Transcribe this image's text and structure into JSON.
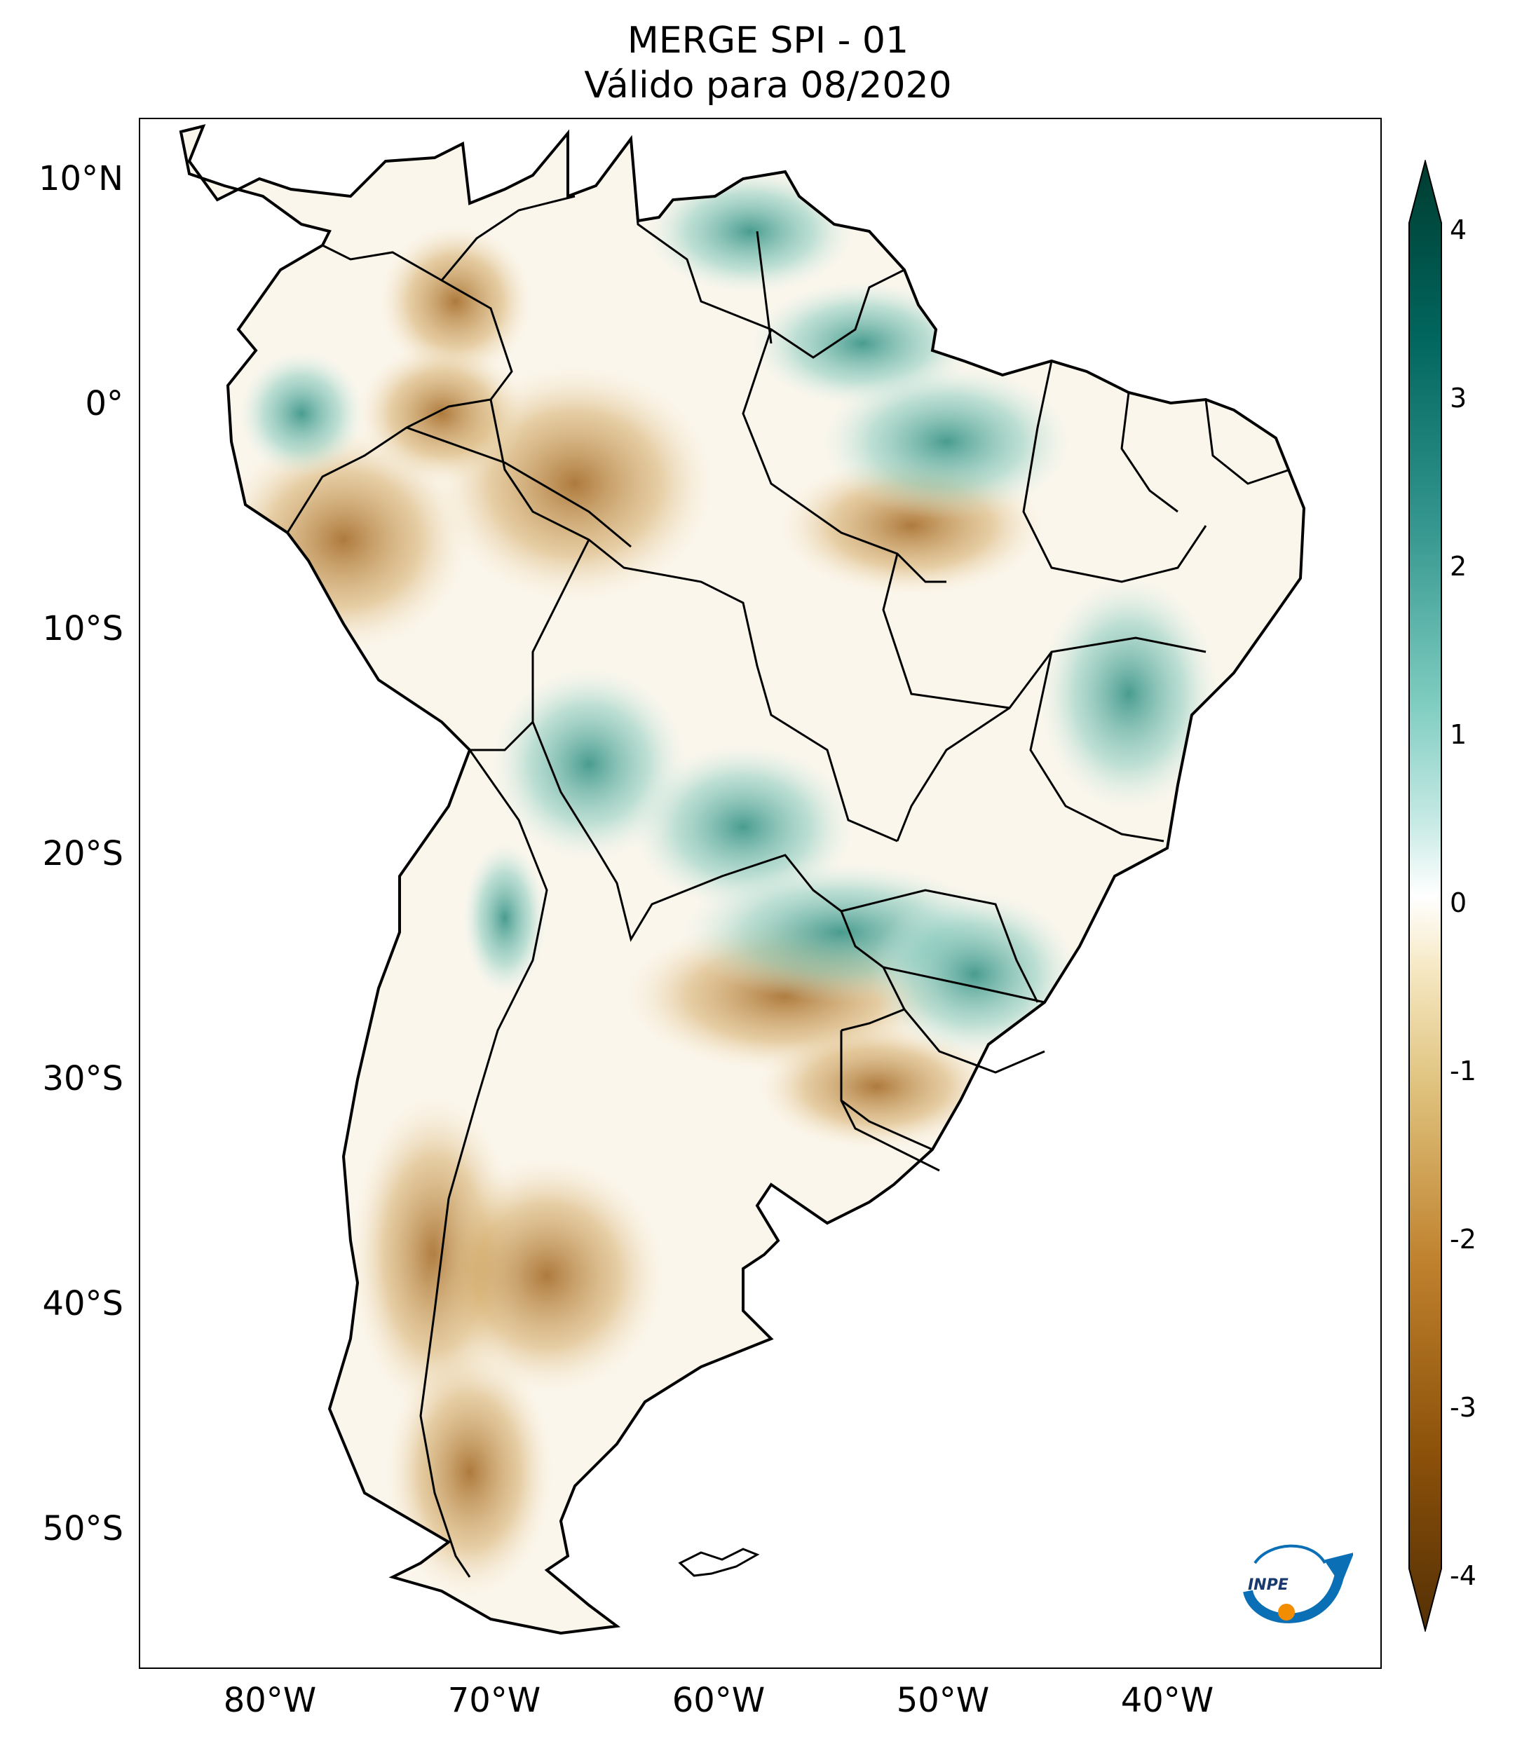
{
  "title": {
    "line1": "MERGE   SPI - 01",
    "line2": "Válido para 08/2020"
  },
  "map": {
    "lat_ticks": [
      "10°N",
      "0°",
      "10°S",
      "20°S",
      "30°S",
      "40°S",
      "50°S"
    ],
    "lon_ticks": [
      "80°W",
      "70°W",
      "60°W",
      "50°W",
      "40°W"
    ]
  },
  "colorbar": {
    "tick_labels": [
      "4",
      "3",
      "2",
      "1",
      "0",
      "-1",
      "-2",
      "-3",
      "-4"
    ],
    "colors": {
      "dry_extreme": "#543005",
      "dry": "#bf812d",
      "neutral": "#ffffff",
      "wet": "#35978f",
      "wet_extreme": "#003c30"
    }
  },
  "logo": {
    "text": "INPE"
  }
}
